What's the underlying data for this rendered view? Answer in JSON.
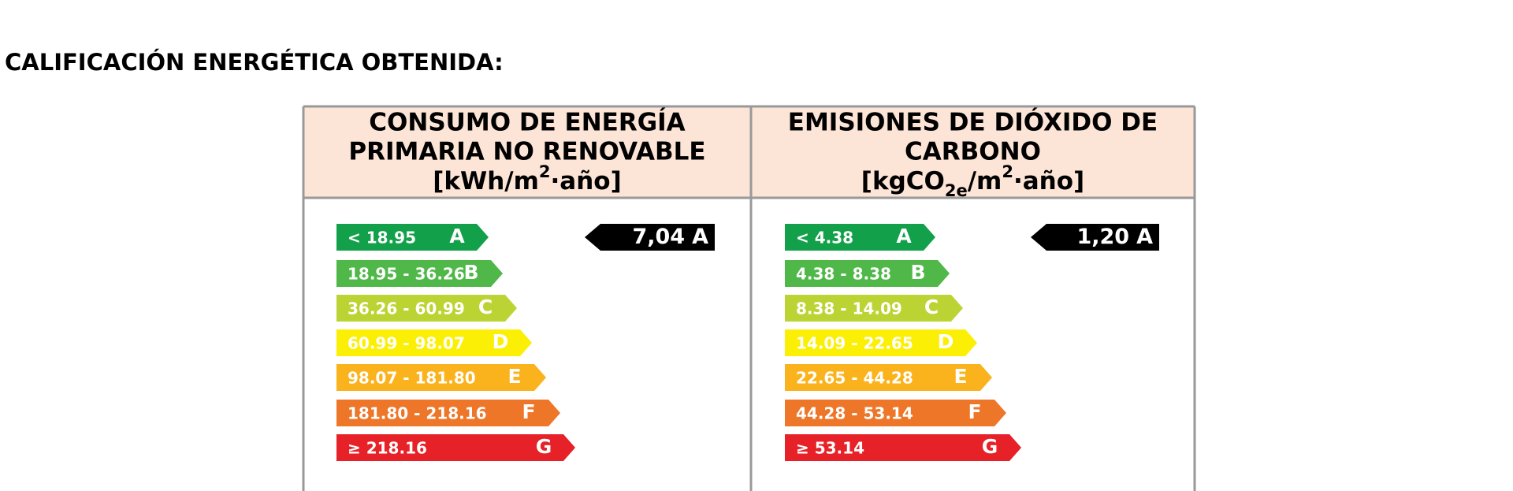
{
  "title": "CALIFICACIÓN ENERGÉTICA OBTENIDA:",
  "panels": [
    {
      "header_lines": [
        "CONSUMO DE ENERGÍA",
        "PRIMARIA NO RENOVABLE"
      ],
      "unit": [
        {
          "text": "[kWh/m"
        },
        {
          "text": "2",
          "style": "sup"
        },
        {
          "text": "·año]"
        }
      ],
      "scale": [
        {
          "range": "< 18.95",
          "letter": "A",
          "color": "#12a14a"
        },
        {
          "range": "18.95 - 36.26",
          "letter": "B",
          "color": "#4fb848"
        },
        {
          "range": "36.26 - 60.99",
          "letter": "C",
          "color": "#bcd433"
        },
        {
          "range": "60.99 - 98.07",
          "letter": "D",
          "color": "#fcef06"
        },
        {
          "range": "98.07 - 181.80",
          "letter": "E",
          "color": "#fab31c"
        },
        {
          "range": "181.80 - 218.16",
          "letter": "F",
          "color": "#ee7629"
        },
        {
          "range": "≥ 218.16",
          "letter": "G",
          "color": "#e62128"
        }
      ],
      "rating": {
        "value": "7,04",
        "letter": "A"
      }
    },
    {
      "header_lines": [
        "EMISIONES DE DIÓXIDO DE",
        "CARBONO"
      ],
      "unit": [
        {
          "text": "[kgCO"
        },
        {
          "text": "2e",
          "style": "sub"
        },
        {
          "text": "/m"
        },
        {
          "text": "2",
          "style": "sup"
        },
        {
          "text": "·año]"
        }
      ],
      "scale": [
        {
          "range": "< 4.38",
          "letter": "A",
          "color": "#12a14a"
        },
        {
          "range": "4.38 - 8.38",
          "letter": "B",
          "color": "#4fb848"
        },
        {
          "range": "8.38 - 14.09",
          "letter": "C",
          "color": "#bcd433"
        },
        {
          "range": "14.09 - 22.65",
          "letter": "D",
          "color": "#fcef06"
        },
        {
          "range": "22.65 - 44.28",
          "letter": "E",
          "color": "#fab31c"
        },
        {
          "range": "44.28 - 53.14",
          "letter": "F",
          "color": "#ee7629"
        },
        {
          "range": "≥ 53.14",
          "letter": "G",
          "color": "#e62128"
        }
      ],
      "rating": {
        "value": "1,20",
        "letter": "A"
      }
    }
  ]
}
